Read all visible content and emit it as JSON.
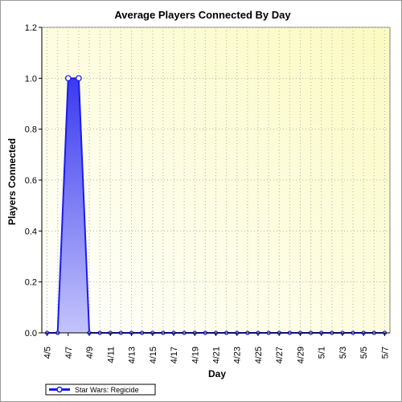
{
  "chart_data": {
    "type": "area",
    "title": "Average Players Connected By Day",
    "xlabel": "Day",
    "ylabel": "Players Connected",
    "ylim": [
      0,
      1.2
    ],
    "y_ticks": [
      "0.0",
      "0.2",
      "0.4",
      "0.6",
      "0.8",
      "1.0",
      "1.2"
    ],
    "y_tick_values": [
      0,
      0.2,
      0.4,
      0.6,
      0.8,
      1.0,
      1.2
    ],
    "x_tick_labels": [
      "4/5",
      "4/7",
      "4/9",
      "4/11",
      "4/13",
      "4/15",
      "4/17",
      "4/19",
      "4/21",
      "4/23",
      "4/25",
      "4/27",
      "4/29",
      "5/1",
      "5/3",
      "5/5",
      "5/7"
    ],
    "categories": [
      "4/5",
      "4/6",
      "4/7",
      "4/8",
      "4/9",
      "4/10",
      "4/11",
      "4/12",
      "4/13",
      "4/14",
      "4/15",
      "4/16",
      "4/17",
      "4/18",
      "4/19",
      "4/20",
      "4/21",
      "4/22",
      "4/23",
      "4/24",
      "4/25",
      "4/26",
      "4/27",
      "4/28",
      "4/29",
      "4/30",
      "5/1",
      "5/2",
      "5/3",
      "5/4",
      "5/5",
      "5/6",
      "5/7"
    ],
    "grid": true,
    "legend_position": "bottom-left",
    "series": [
      {
        "name": "Star Wars: Regicide",
        "color": "#1a1aee",
        "values": [
          0,
          0,
          1.0,
          1.0,
          0,
          0,
          0,
          0,
          0,
          0,
          0,
          0,
          0,
          0,
          0,
          0,
          0,
          0,
          0,
          0,
          0,
          0,
          0,
          0,
          0,
          0,
          0,
          0,
          0,
          0,
          0,
          0,
          0
        ]
      }
    ]
  }
}
